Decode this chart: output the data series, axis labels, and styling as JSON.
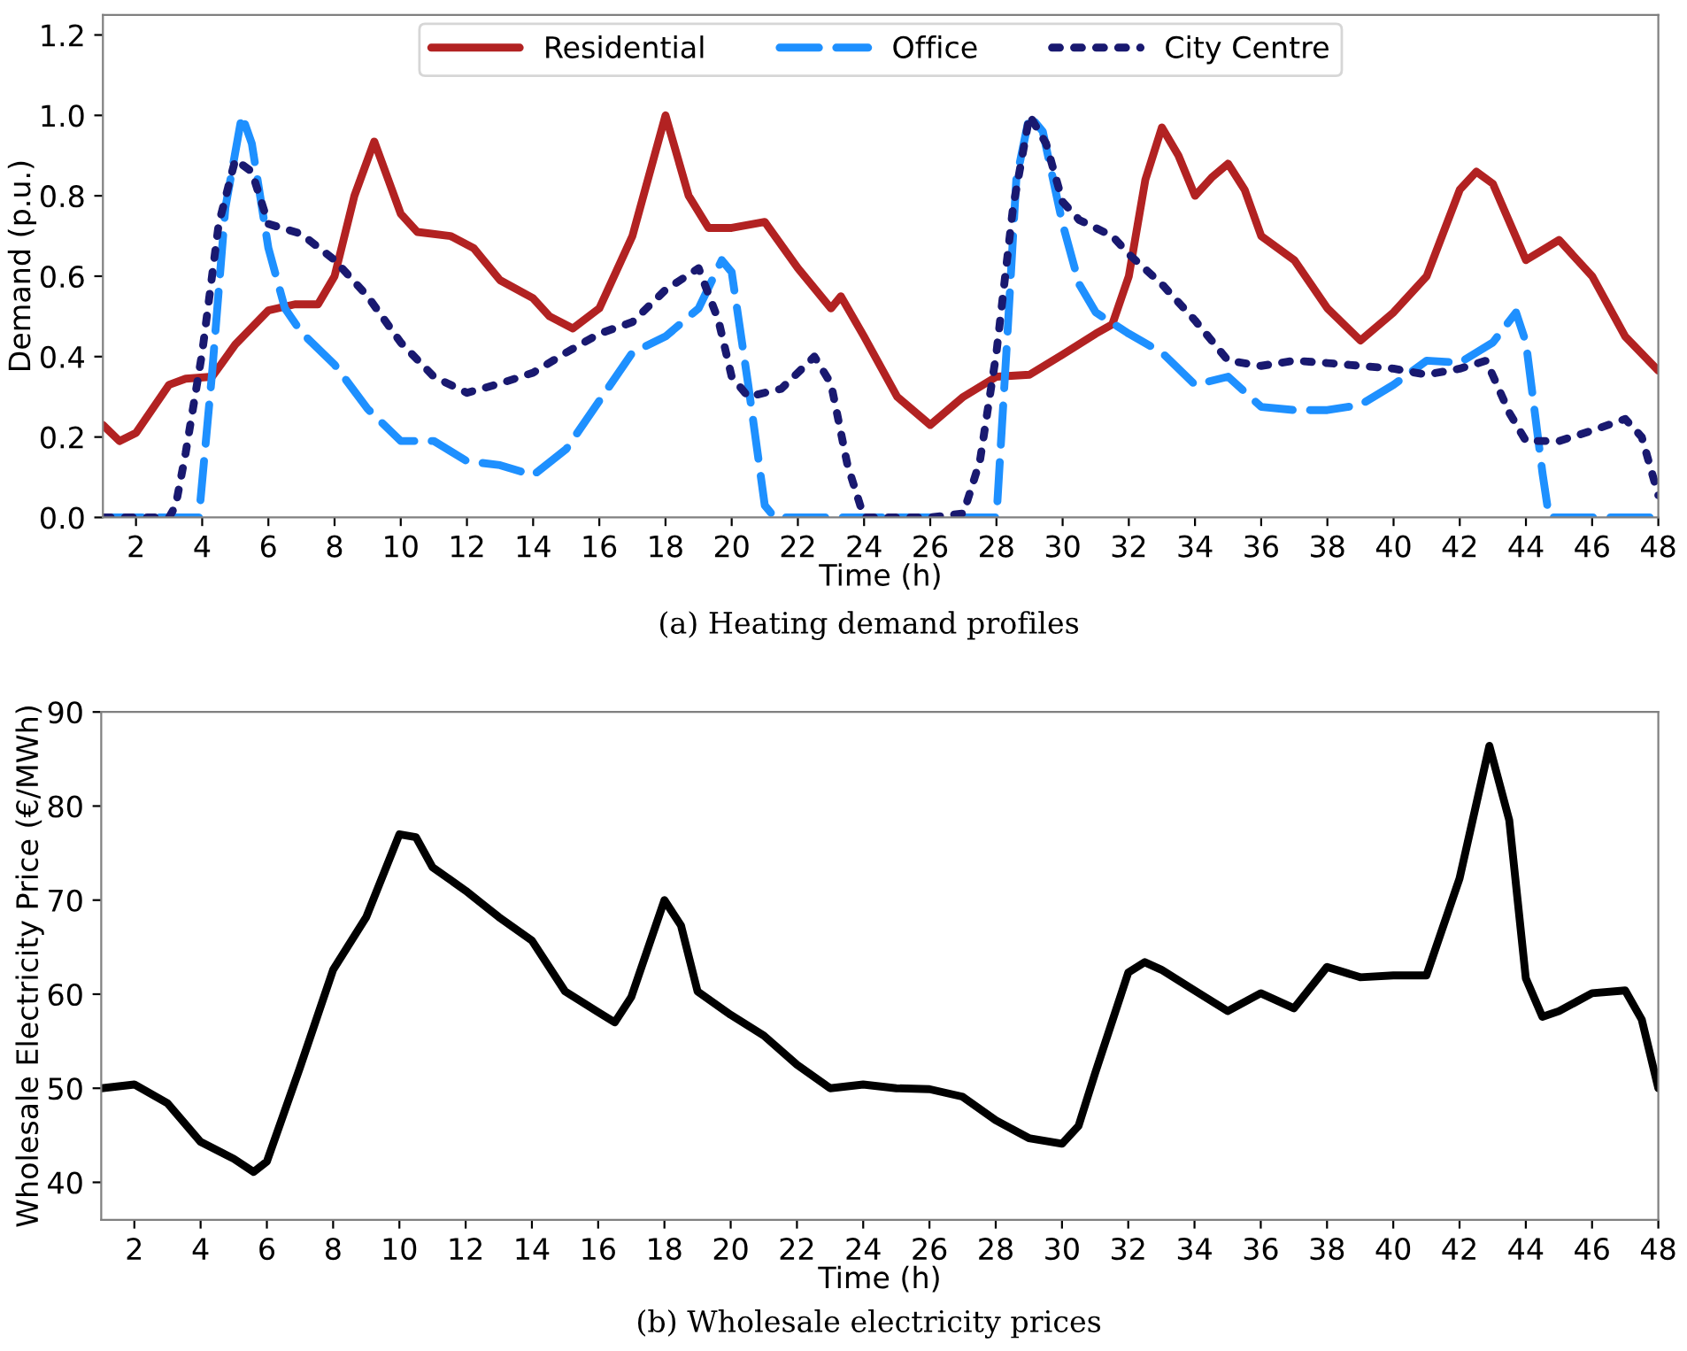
{
  "chart_data": [
    {
      "type": "line",
      "xlabel": "Time (h)",
      "ylabel": "Demand (p.u.)",
      "annotations": [
        "(a) Heating demand profiles"
      ],
      "xlim": [
        1,
        48
      ],
      "xticks": [
        2,
        4,
        6,
        8,
        10,
        12,
        14,
        16,
        18,
        20,
        22,
        24,
        26,
        28,
        30,
        32,
        34,
        36,
        38,
        40,
        42,
        44,
        46,
        48
      ],
      "ylim": [
        0,
        1.25
      ],
      "yticks": [
        {
          "value": 0,
          "label": "0.0"
        },
        0.2,
        0.4,
        0.6,
        0.8,
        {
          "value": 1,
          "label": "1.0"
        },
        1.2
      ],
      "grid": false,
      "legend": "top",
      "series": [
        {
          "name": "Residential",
          "color": "#b22222",
          "line_style": "solid",
          "x": [
            1,
            1.5,
            2,
            3,
            3.5,
            4.3,
            5,
            6,
            6.8,
            7.5,
            8,
            8.6,
            9.2,
            10,
            10.5,
            11.5,
            12.2,
            13,
            14,
            14.5,
            15.2,
            16,
            17,
            18,
            18.7,
            19.3,
            20,
            21,
            22,
            23,
            23.3,
            24,
            25,
            26,
            27,
            28,
            29,
            30,
            31,
            31.5,
            32,
            32.5,
            33,
            33.5,
            34,
            34.5,
            35,
            35.5,
            36,
            37,
            38,
            39,
            40,
            41,
            42,
            42.5,
            43,
            44,
            45,
            46,
            47,
            48
          ],
          "values": [
            0.23,
            0.19,
            0.21,
            0.33,
            0.345,
            0.35,
            0.43,
            0.515,
            0.53,
            0.53,
            0.6,
            0.8,
            0.935,
            0.755,
            0.71,
            0.7,
            0.67,
            0.59,
            0.545,
            0.5,
            0.47,
            0.52,
            0.7,
            1.0,
            0.8,
            0.72,
            0.72,
            0.735,
            0.62,
            0.52,
            0.55,
            0.45,
            0.3,
            0.23,
            0.3,
            0.35,
            0.355,
            0.405,
            0.457,
            0.48,
            0.6,
            0.84,
            0.97,
            0.9,
            0.8,
            0.845,
            0.88,
            0.815,
            0.7,
            0.64,
            0.52,
            0.44,
            0.51,
            0.6,
            0.815,
            0.86,
            0.83,
            0.64,
            0.69,
            0.6,
            0.45,
            0.365
          ]
        },
        {
          "name": "Office",
          "color": "#1e90ff",
          "line_style": "dashed",
          "x": [
            1,
            2,
            3,
            3.9,
            4.3,
            4.7,
            5.2,
            5.5,
            6,
            6.5,
            7,
            8,
            9,
            10,
            11,
            12,
            13,
            14,
            15,
            16,
            17,
            18,
            19,
            19.7,
            20,
            20.5,
            21,
            21.3,
            24,
            26,
            28,
            28.3,
            28.6,
            29,
            29.4,
            30,
            30.5,
            31,
            32,
            33,
            34,
            35,
            36,
            37,
            38,
            39,
            40,
            41,
            42,
            43,
            43.7,
            44,
            44.5,
            44.7,
            46,
            48
          ],
          "values": [
            0,
            0,
            0,
            0,
            0.36,
            0.77,
            1.0,
            0.93,
            0.67,
            0.52,
            0.46,
            0.38,
            0.27,
            0.19,
            0.19,
            0.14,
            0.13,
            0.105,
            0.17,
            0.29,
            0.41,
            0.45,
            0.52,
            0.64,
            0.61,
            0.33,
            0.03,
            0,
            0,
            0,
            0,
            0.41,
            0.84,
            1.0,
            0.96,
            0.73,
            0.58,
            0.51,
            0.457,
            0.41,
            0.33,
            0.35,
            0.275,
            0.267,
            0.267,
            0.28,
            0.33,
            0.39,
            0.385,
            0.435,
            0.51,
            0.435,
            0.11,
            0,
            0,
            0
          ]
        },
        {
          "name": "City Centre",
          "color": "#191970",
          "line_style": "dotted",
          "x": [
            1,
            2,
            3,
            3.2,
            3.5,
            4,
            4.5,
            5,
            5.5,
            6,
            7,
            8,
            9,
            10,
            11,
            12,
            13,
            14,
            15,
            16,
            17,
            18,
            19,
            19.6,
            20,
            20.5,
            21.5,
            22.5,
            23,
            23.5,
            24,
            25,
            26,
            27,
            27.5,
            28,
            28.5,
            29,
            29.5,
            30,
            30.5,
            31.5,
            32,
            33,
            34,
            35,
            36,
            37,
            38,
            39,
            40,
            41,
            42,
            42.8,
            43.5,
            44,
            45,
            46,
            47,
            47.5,
            48
          ],
          "values": [
            0,
            0,
            0,
            0.03,
            0.16,
            0.41,
            0.73,
            0.89,
            0.86,
            0.73,
            0.705,
            0.64,
            0.55,
            0.435,
            0.35,
            0.31,
            0.333,
            0.36,
            0.41,
            0.457,
            0.486,
            0.566,
            0.62,
            0.49,
            0.35,
            0.3,
            0.32,
            0.4,
            0.333,
            0.13,
            0,
            0,
            0,
            0.01,
            0.14,
            0.41,
            0.77,
            1.0,
            0.93,
            0.785,
            0.74,
            0.7,
            0.655,
            0.58,
            0.49,
            0.39,
            0.377,
            0.39,
            0.384,
            0.377,
            0.37,
            0.355,
            0.37,
            0.39,
            0.26,
            0.19,
            0.19,
            0.216,
            0.245,
            0.2,
            0.055
          ]
        }
      ]
    },
    {
      "type": "line",
      "xlabel": "Time (h)",
      "ylabel": "Wholesale Electricity Price (€/MWh)",
      "annotations": [
        "(b) Wholesale electricity prices"
      ],
      "xlim": [
        1,
        48
      ],
      "xticks": [
        2,
        4,
        6,
        8,
        10,
        12,
        14,
        16,
        18,
        20,
        22,
        24,
        26,
        28,
        30,
        32,
        34,
        36,
        38,
        40,
        42,
        44,
        46,
        48
      ],
      "ylim": [
        36,
        90
      ],
      "yticks": [
        40,
        50,
        60,
        70,
        80,
        90
      ],
      "grid": false,
      "series": [
        {
          "color": "#000000",
          "line_style": "solid",
          "x": [
            1,
            2,
            3,
            4,
            5,
            5.6,
            6,
            7,
            8,
            9,
            10,
            10.5,
            11,
            12,
            13,
            14,
            15,
            16,
            16.5,
            17,
            18,
            18.5,
            19,
            20,
            21,
            22,
            23,
            24,
            25,
            26,
            27,
            28,
            29,
            30,
            30.5,
            31,
            32,
            32.5,
            33,
            34,
            35,
            36,
            37,
            38,
            39,
            40,
            41,
            42,
            42.9,
            43.5,
            44,
            44.5,
            45,
            46,
            47,
            47.5,
            48
          ],
          "values": [
            50,
            50.4,
            48.4,
            44.3,
            42.5,
            41.1,
            42.2,
            52.2,
            62.6,
            68.2,
            77.0,
            76.7,
            73.5,
            71.0,
            68.2,
            65.7,
            60.3,
            58.1,
            57.0,
            59.7,
            70.0,
            67.3,
            60.3,
            57.8,
            55.6,
            52.5,
            50,
            50.4,
            50,
            49.9,
            49.1,
            46.6,
            44.7,
            44.1,
            46,
            51.6,
            62.3,
            63.4,
            62.6,
            60.4,
            58.2,
            60.1,
            58.5,
            62.9,
            61.8,
            62,
            62,
            72.3,
            86.4,
            78.5,
            61.7,
            57.6,
            58.2,
            60.1,
            60.4,
            57.3,
            50
          ]
        }
      ]
    }
  ]
}
